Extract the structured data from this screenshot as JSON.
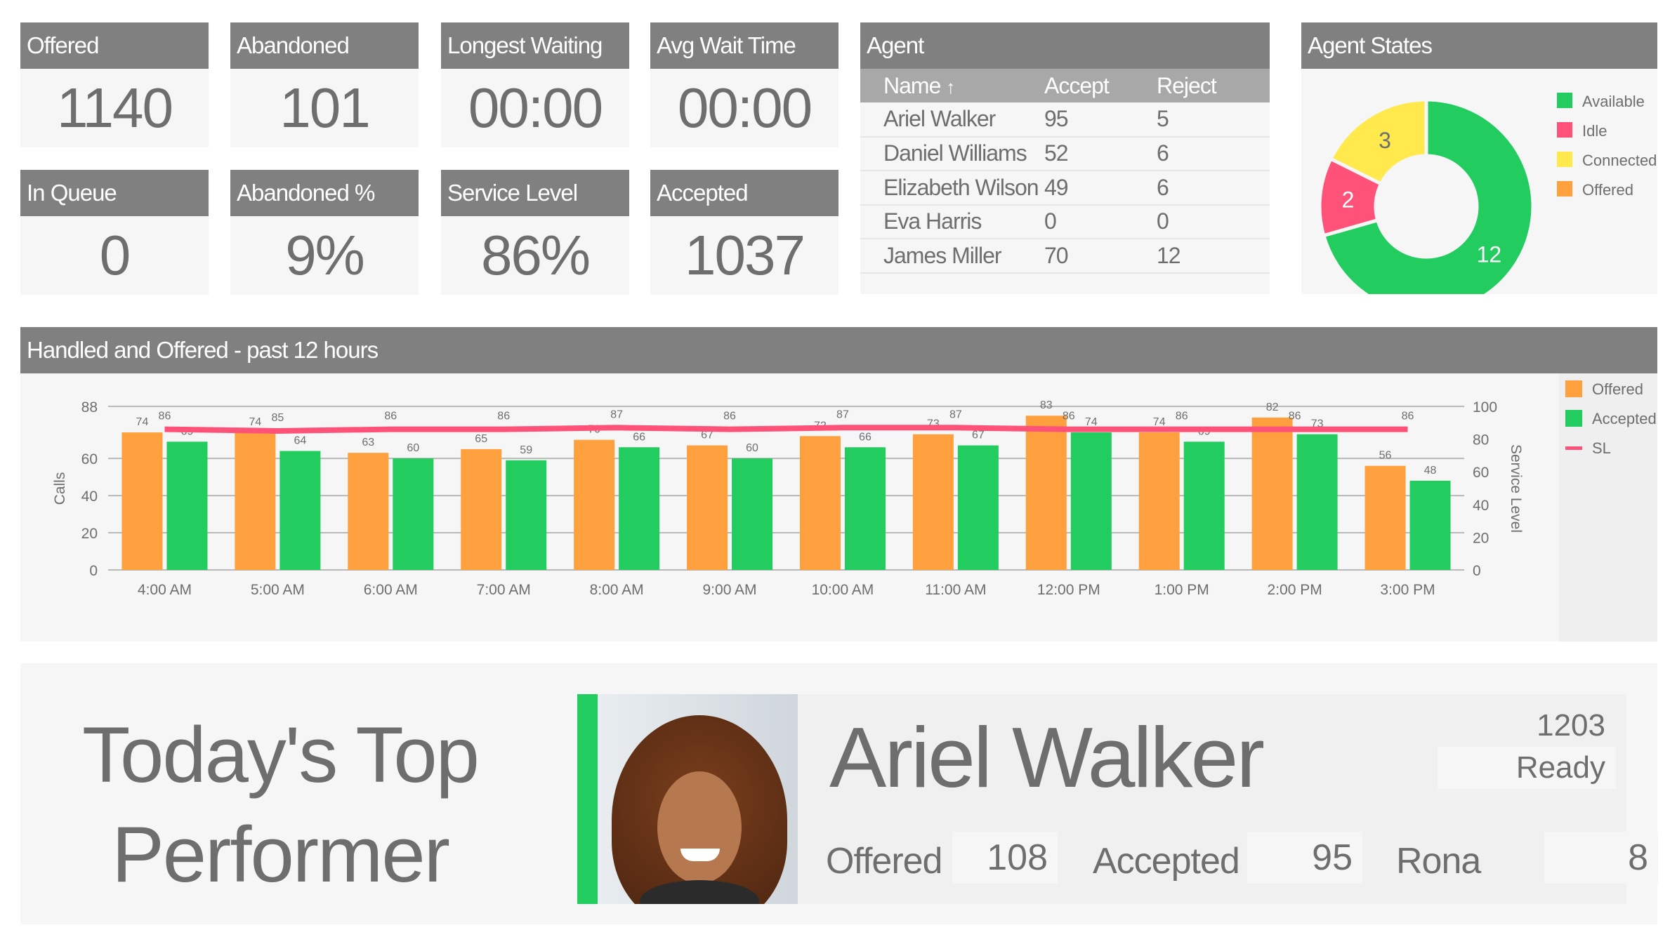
{
  "tiles": [
    {
      "label": "Offered",
      "value": "1140"
    },
    {
      "label": "Abandoned",
      "value": "101"
    },
    {
      "label": "Longest Waiting",
      "value": "00:00"
    },
    {
      "label": "Avg Wait Time",
      "value": "00:00"
    },
    {
      "label": "In Queue",
      "value": "0"
    },
    {
      "label": "Abandoned %",
      "value": "9%"
    },
    {
      "label": "Service Level",
      "value": "86%"
    },
    {
      "label": "Accepted",
      "value": "1037"
    }
  ],
  "agent_table": {
    "title": "Agent",
    "columns": [
      "Name",
      "Accept",
      "Reject"
    ],
    "sort_icon": "arrow-up-icon",
    "rows": [
      [
        "Ariel Walker",
        "95",
        "5"
      ],
      [
        "Daniel Williams",
        "52",
        "6"
      ],
      [
        "Elizabeth Wilson",
        "49",
        "6"
      ],
      [
        "Eva Harris",
        "0",
        "0"
      ],
      [
        "James Miller",
        "70",
        "12"
      ]
    ]
  },
  "agent_states": {
    "title": "Agent States",
    "slices": [
      {
        "name": "Available",
        "value": 12,
        "color": "#22cc5f"
      },
      {
        "name": "Idle",
        "value": 2,
        "color": "#ff5279"
      },
      {
        "name": "Connected",
        "value": 3,
        "color": "#ffe94d"
      },
      {
        "name": "Offered",
        "value": 0,
        "color": "#ffa03f"
      }
    ]
  },
  "chart_data": {
    "type": "bar",
    "title": "Handled and Offered - past 12 hours",
    "categories": [
      "4:00 AM",
      "5:00 AM",
      "6:00 AM",
      "7:00 AM",
      "8:00 AM",
      "9:00 AM",
      "10:00 AM",
      "11:00 AM",
      "12:00 PM",
      "1:00 PM",
      "2:00 PM",
      "3:00 PM"
    ],
    "series": [
      {
        "name": "Offered",
        "type": "bar",
        "axis": "left",
        "color": "#ffa03f",
        "values": [
          74,
          74,
          63,
          65,
          70,
          67,
          72,
          73,
          83,
          74,
          82,
          56
        ]
      },
      {
        "name": "Accepted",
        "type": "bar",
        "axis": "left",
        "color": "#22cc5f",
        "values": [
          69,
          64,
          60,
          59,
          66,
          60,
          66,
          67,
          74,
          69,
          73,
          48
        ]
      },
      {
        "name": "SL",
        "type": "line",
        "axis": "right",
        "color": "#ff5279",
        "values": [
          86,
          85,
          86,
          86,
          87,
          86,
          87,
          87,
          86,
          86,
          86,
          86
        ]
      }
    ],
    "ylabel": "Calls",
    "ylim": [
      0,
      88
    ],
    "yticks": [
      0,
      20,
      40,
      60,
      88
    ],
    "y2label": "Service Level",
    "y2lim": [
      0,
      100
    ],
    "y2ticks": [
      0,
      20,
      40,
      60,
      80,
      100
    ],
    "grid": true,
    "legend": "right"
  },
  "top_performer": {
    "heading_line1": "Today's Top",
    "heading_line2": "Performer",
    "name": "Ariel Walker",
    "extension": "1203",
    "status": "Ready",
    "status_color": "#22cc5f",
    "stats": [
      {
        "label": "Offered",
        "value": "108"
      },
      {
        "label": "Accepted",
        "value": "95"
      },
      {
        "label": "Rona",
        "value": "8"
      }
    ]
  }
}
